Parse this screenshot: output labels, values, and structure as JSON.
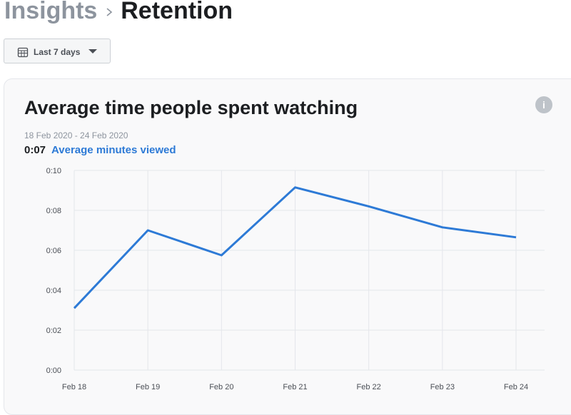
{
  "header": {
    "parent": "Insights",
    "title": "Retention"
  },
  "filter": {
    "label": "Last 7 days"
  },
  "chart_data": {
    "type": "line",
    "title": "Average time people spent watching",
    "subtitle": "18 Feb 2020 - 24 Feb 2020",
    "summary_value": "0:07",
    "categories": [
      "Feb 18",
      "Feb 19",
      "Feb 20",
      "Feb 21",
      "Feb 22",
      "Feb 23",
      "Feb 24"
    ],
    "series": [
      {
        "name": "Average minutes viewed",
        "color": "#2d7ad6",
        "values": [
          3.1,
          7.0,
          5.75,
          9.15,
          8.2,
          7.15,
          6.65
        ]
      }
    ],
    "ylim": [
      0,
      10
    ],
    "yticks": [
      {
        "value": 0,
        "label": "0:00"
      },
      {
        "value": 2,
        "label": "0:02"
      },
      {
        "value": 4,
        "label": "0:04"
      },
      {
        "value": 6,
        "label": "0:06"
      },
      {
        "value": 8,
        "label": "0:08"
      },
      {
        "value": 10,
        "label": "0:10"
      }
    ],
    "grid": true
  }
}
